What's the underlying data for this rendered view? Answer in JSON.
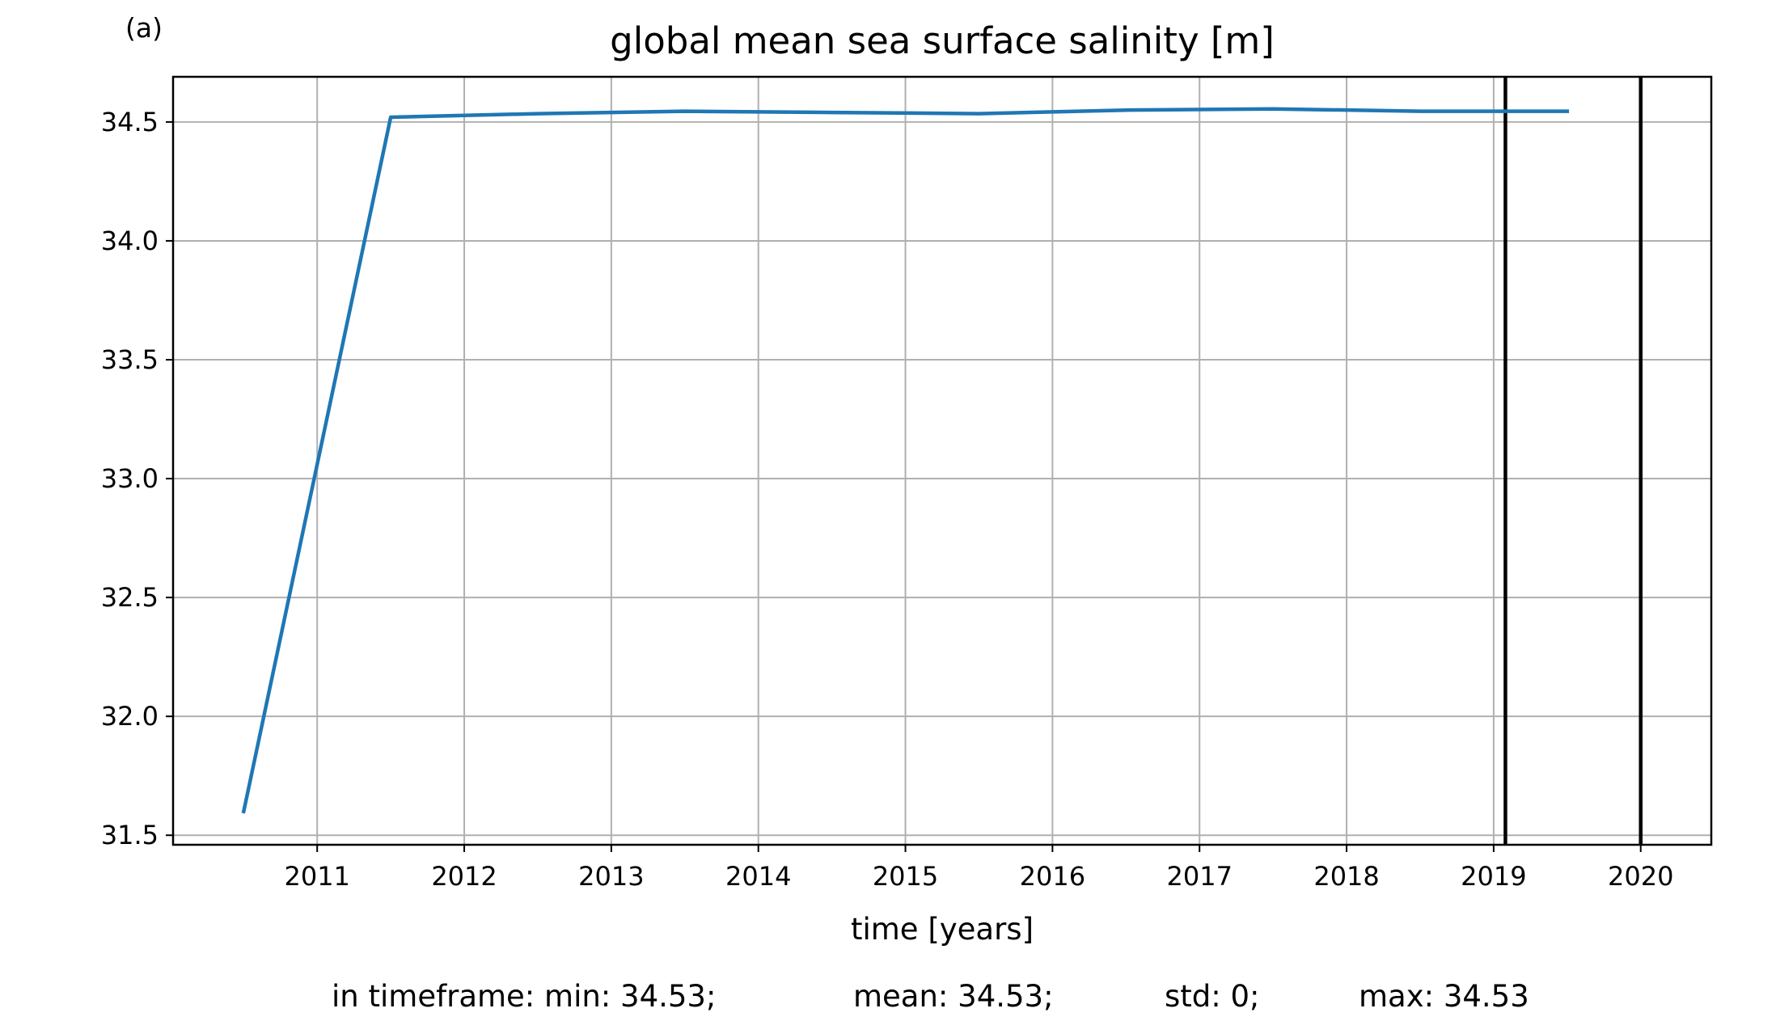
{
  "chart_data": {
    "type": "line",
    "panel_label": "(a)",
    "title": "global mean sea surface salinity [m]",
    "xlabel": "time [years]",
    "ylabel": "",
    "xlim": [
      2010.02,
      2020.48
    ],
    "ylim": [
      31.46,
      34.69
    ],
    "grid": true,
    "x_ticks": [
      2011,
      2012,
      2013,
      2014,
      2015,
      2016,
      2017,
      2018,
      2019,
      2020
    ],
    "x_tick_labels": [
      "2011",
      "2012",
      "2013",
      "2014",
      "2015",
      "2016",
      "2017",
      "2018",
      "2019",
      "2020"
    ],
    "y_ticks": [
      31.5,
      32.0,
      32.5,
      33.0,
      33.5,
      34.0,
      34.5
    ],
    "y_tick_labels": [
      "31.5",
      "32.0",
      "32.5",
      "33.0",
      "33.5",
      "34.0",
      "34.5"
    ],
    "series": [
      {
        "color": "#1f77b4",
        "x": [
          2010.5,
          2011.5,
          2012.5,
          2013.5,
          2014.5,
          2015.5,
          2016.5,
          2017.5,
          2018.5,
          2019.5
        ],
        "y": [
          31.6,
          34.52,
          34.535,
          34.545,
          34.54,
          34.535,
          34.55,
          34.555,
          34.545,
          34.545
        ]
      }
    ],
    "vertical_lines": [
      {
        "x": 2019.08,
        "color": "#000000"
      },
      {
        "x": 2020.0,
        "color": "#000000"
      }
    ],
    "footer": {
      "min": "in timeframe: min: 34.53;",
      "mean": "mean: 34.53;",
      "std": "std: 0;",
      "max": "max: 34.53"
    }
  }
}
